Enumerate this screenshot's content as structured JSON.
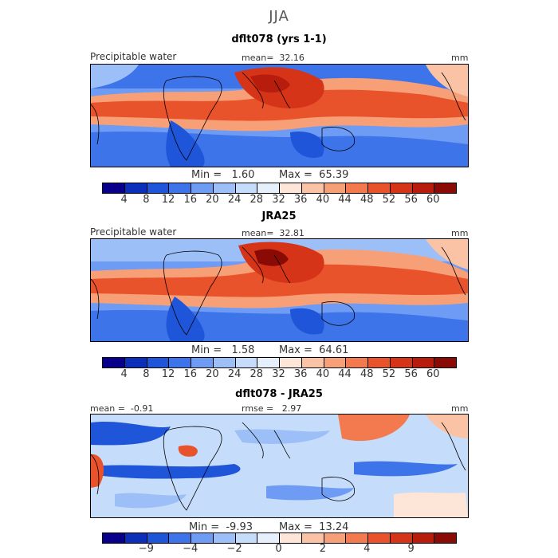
{
  "figure": {
    "title": "JJA"
  },
  "colors": {
    "full_scale": [
      "#08008a",
      "#0b2fb8",
      "#1f55d8",
      "#3d74ea",
      "#6e9bf3",
      "#9dbff8",
      "#c6dcfb",
      "#e6f0fd",
      "#fde5d8",
      "#fbc3a6",
      "#f7a078",
      "#f27a4e",
      "#e9532b",
      "#d63418",
      "#b81c0c",
      "#8a0b05"
    ],
    "diff_scale": [
      "#08008a",
      "#0b2fb8",
      "#1f55d8",
      "#3d74ea",
      "#6e9bf3",
      "#9dbff8",
      "#c6dcfb",
      "#e6f0fd",
      "#fde5d8",
      "#fbc3a6",
      "#f7a078",
      "#f27a4e",
      "#e9532b",
      "#d63418",
      "#b81c0c",
      "#8a0b05"
    ]
  },
  "chart_data": [
    {
      "type": "heatmap",
      "title": "dflt078 (yrs 1-1)",
      "variable": "Precipitable water",
      "units": "mm",
      "mean_label": "mean=",
      "mean": "32.16",
      "min_label": "Min =",
      "min": "1.60",
      "max_label": "Max =",
      "max": "65.39",
      "colorbar_levels": [
        4,
        8,
        12,
        16,
        20,
        24,
        28,
        32,
        36,
        40,
        44,
        48,
        52,
        56,
        60
      ],
      "colorbar_ticks": [
        "4",
        "8",
        "12",
        "16",
        "20",
        "24",
        "28",
        "32",
        "36",
        "40",
        "44",
        "48",
        "52",
        "56",
        "60"
      ]
    },
    {
      "type": "heatmap",
      "title": "JRA25",
      "variable": "Precipitable water",
      "units": "mm",
      "mean_label": "mean=",
      "mean": "32.81",
      "min_label": "Min =",
      "min": "1.58",
      "max_label": "Max =",
      "max": "64.61",
      "colorbar_levels": [
        4,
        8,
        12,
        16,
        20,
        24,
        28,
        32,
        36,
        40,
        44,
        48,
        52,
        56,
        60
      ],
      "colorbar_ticks": [
        "4",
        "8",
        "12",
        "16",
        "20",
        "24",
        "28",
        "32",
        "36",
        "40",
        "44",
        "48",
        "52",
        "56",
        "60"
      ]
    },
    {
      "type": "heatmap",
      "title": "dflt078 - JRA25",
      "units": "mm",
      "mean_label": "mean =",
      "mean": "-0.91",
      "rmse_label": "rmse =",
      "rmse": "2.97",
      "min_label": "Min =",
      "min": "-9.93",
      "max_label": "Max =",
      "max": "13.24",
      "colorbar_ticks": [
        "−9",
        "−4",
        "−2",
        "0",
        "2",
        "4",
        "9"
      ]
    }
  ]
}
